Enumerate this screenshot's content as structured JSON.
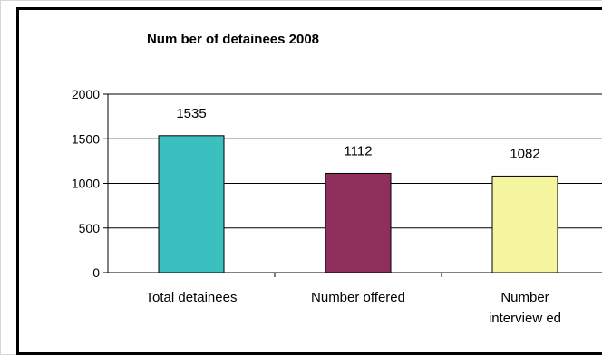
{
  "chart_data": {
    "type": "bar",
    "title": "Num ber of detainees 2008",
    "categories": [
      [
        "Total detainees"
      ],
      [
        "Number offered"
      ],
      [
        "Number",
        "interview ed"
      ]
    ],
    "values": [
      1535,
      1112,
      1082
    ],
    "data_labels": [
      "1535",
      "1112",
      "1082"
    ],
    "bar_colors": [
      "#3cbfbf",
      "#8f2f5c",
      "#f5f5a0"
    ],
    "ylim": [
      0,
      2000
    ],
    "yticks": [
      0,
      500,
      1000,
      1500,
      2000
    ],
    "ytick_labels": [
      "0",
      "500",
      "1000",
      "1500",
      "2000"
    ],
    "grid": true,
    "legend": "none",
    "xlabel": "",
    "ylabel": ""
  }
}
